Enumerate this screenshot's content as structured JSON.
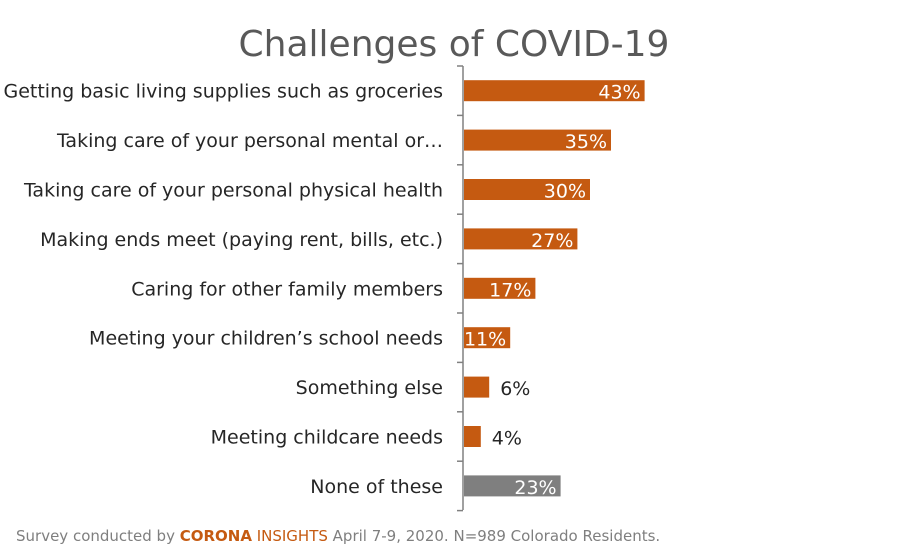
{
  "chart_data": {
    "type": "bar",
    "orientation": "horizontal",
    "title": "Challenges of COVID-19",
    "categories": [
      "Getting basic living supplies such as groceries",
      "Taking care of your personal mental or…",
      "Taking care of your personal physical health",
      "Making ends meet (paying rent, bills, etc.)",
      "Caring for other family members",
      "Meeting your children’s school needs",
      "Something else",
      "Meeting childcare needs",
      "None of these"
    ],
    "values": [
      43,
      35,
      30,
      27,
      17,
      11,
      6,
      4,
      23
    ],
    "value_labels": [
      "43%",
      "35%",
      "30%",
      "27%",
      "17%",
      "11%",
      "6%",
      "4%",
      "23%"
    ],
    "bar_colors": [
      "#c55a11",
      "#c55a11",
      "#c55a11",
      "#c55a11",
      "#c55a11",
      "#c55a11",
      "#c55a11",
      "#c55a11",
      "#7f7f7f"
    ],
    "xlim": [
      0,
      100
    ],
    "grid": false,
    "legend": "none"
  },
  "footer": {
    "prefix": "Survey conducted by ",
    "brand_bold": "CORONA",
    "brand_light": " INSIGHTS",
    "suffix": " April 7-9, 2020. N=989 Colorado Residents."
  },
  "colors": {
    "accent": "#c55a11",
    "neutral_bar": "#7f7f7f"
  }
}
